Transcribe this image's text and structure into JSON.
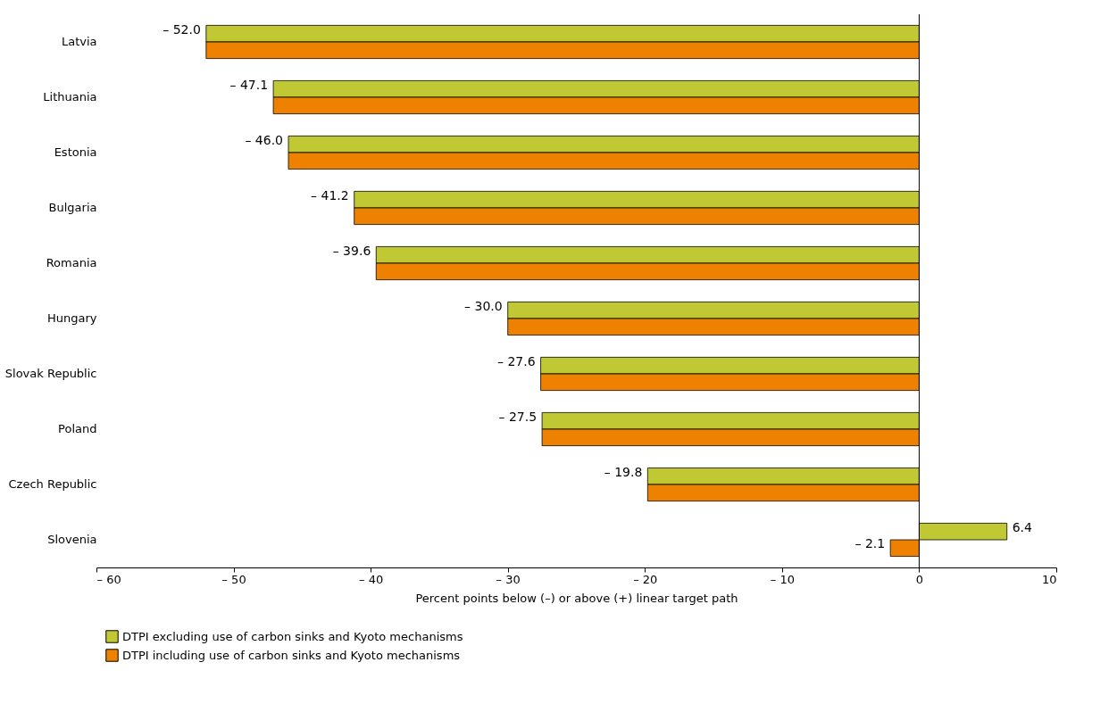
{
  "chart_data": {
    "type": "bar",
    "orientation": "horizontal",
    "xlabel": "Percent points below (–) or above (+) linear target path",
    "categories": [
      "Latvia",
      "Lithuania",
      "Estonia",
      "Bulgaria",
      "Romania",
      "Hungary",
      "Slovak Republic",
      "Poland",
      "Czech Republic",
      "Slovenia"
    ],
    "series": [
      {
        "name": "DTPI excluding use of carbon sinks and Kyoto mechanisms",
        "color": "#c0c933",
        "values": [
          -52.0,
          -47.1,
          -46.0,
          -41.2,
          -39.6,
          -30.0,
          -27.6,
          -27.5,
          -19.8,
          6.4
        ],
        "value_labels": [
          "– 52.0",
          "– 47.1",
          "– 46.0",
          "– 41.2",
          "– 39.6",
          "– 30.0",
          "– 27.6",
          "– 27.5",
          "– 19.8",
          "6.4"
        ]
      },
      {
        "name": "DTPI including use of carbon sinks and Kyoto mechanisms",
        "color": "#ee8200",
        "values": [
          -52.0,
          -47.1,
          -46.0,
          -41.2,
          -39.6,
          -30.0,
          -27.6,
          -27.5,
          -19.8,
          -2.1
        ],
        "value_labels": [
          null,
          null,
          null,
          null,
          null,
          null,
          null,
          null,
          null,
          "– 2.1"
        ]
      }
    ],
    "xlim": [
      -60,
      10
    ],
    "xticks": [
      {
        "value": -60,
        "label": "– 60"
      },
      {
        "value": -50,
        "label": "– 50"
      },
      {
        "value": -40,
        "label": "– 40"
      },
      {
        "value": -30,
        "label": "– 30"
      },
      {
        "value": -20,
        "label": "– 20"
      },
      {
        "value": -10,
        "label": "– 10"
      },
      0,
      10
    ],
    "ref_lines": [
      {
        "axis": "x",
        "value": 0
      }
    ],
    "grid": false,
    "legend": "bottom left"
  }
}
